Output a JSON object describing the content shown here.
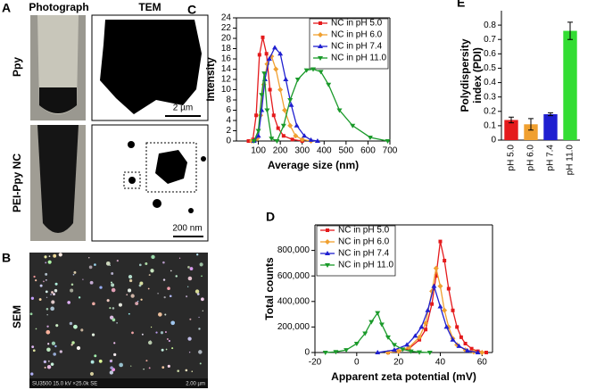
{
  "panels": {
    "A": {
      "label": "A",
      "columns": [
        "Photograph",
        "TEM"
      ],
      "rows": [
        "Ppy",
        "PEI-Ppy NC"
      ],
      "scale_bars": [
        "2 µm",
        "200 nm"
      ]
    },
    "B": {
      "label": "B",
      "title": "SEM",
      "footer": "SU3500 15.0 kV ×25.0k SE",
      "scale_bar": "2.00 µm"
    }
  },
  "chart_data": [
    {
      "type": "line",
      "label": "C",
      "xlabel": "Average size (nm)",
      "ylabel": "Intensity",
      "xlim": [
        0,
        700
      ],
      "xticks": [
        100,
        200,
        300,
        400,
        500,
        600,
        700
      ],
      "ylim": [
        0,
        24
      ],
      "yticks": [
        0,
        2,
        4,
        6,
        8,
        10,
        12,
        14,
        16,
        18,
        20,
        22,
        24
      ],
      "legend": "upper right",
      "series": [
        {
          "name": "NC in pH 5.0",
          "color": "#e41a1c",
          "marker": "square",
          "x": [
            55,
            75,
            90,
            105,
            120,
            137,
            153,
            170,
            190,
            215,
            255,
            300
          ],
          "values": [
            0,
            0.3,
            5,
            16.8,
            20.2,
            17,
            10,
            5,
            2.5,
            1,
            0.3,
            0
          ]
        },
        {
          "name": "NC in pH 6.0",
          "color": "#f0a030",
          "marker": "diamond",
          "x": [
            70,
            95,
            110,
            125,
            140,
            160,
            180,
            200,
            220,
            245,
            270,
            300,
            340
          ],
          "values": [
            0,
            0.5,
            5,
            11,
            15,
            16.5,
            14,
            10,
            6,
            3,
            1,
            0.3,
            0
          ]
        },
        {
          "name": "NC in pH 7.4",
          "color": "#1f1fd0",
          "marker": "triangle-up",
          "x": [
            80,
            100,
            115,
            130,
            150,
            175,
            200,
            225,
            250,
            275,
            310,
            340,
            370
          ],
          "values": [
            0,
            1,
            6,
            12,
            16,
            18.2,
            17,
            12,
            7,
            3,
            1,
            0.2,
            0
          ]
        },
        {
          "name": "NC in pH 11.0",
          "color": "#1a9a2a",
          "marker": "triangle-down",
          "x": [
            80,
            100,
            115,
            127,
            140,
            160,
            185,
            215,
            245,
            280,
            320,
            350,
            385,
            420,
            470,
            530,
            610,
            690
          ],
          "values": [
            0,
            2,
            9,
            13.2,
            6,
            0.5,
            0,
            3,
            8,
            12,
            13.8,
            14,
            13.5,
            11,
            6,
            3,
            0.7,
            0
          ]
        }
      ]
    },
    {
      "type": "line",
      "label": "D",
      "xlabel": "Apparent zeta potential (mV)",
      "ylabel": "Total counts",
      "xlim": [
        -20,
        65
      ],
      "xticks": [
        -20,
        0,
        20,
        40,
        60
      ],
      "ylim": [
        0,
        1000000
      ],
      "yticks": [
        0,
        {
          "value": 200000,
          "label": "200,000"
        },
        {
          "value": 400000,
          "label": "400,000"
        },
        {
          "value": 600000,
          "label": "600,000"
        },
        {
          "value": 800000,
          "label": "800,000"
        }
      ],
      "legend": "upper left",
      "series": [
        {
          "name": "NC in pH 5.0",
          "color": "#e41a1c",
          "marker": "square",
          "x": [
            15,
            20,
            25,
            30,
            33,
            36,
            38,
            40,
            42,
            44,
            46,
            48,
            50,
            52,
            55,
            58,
            62
          ],
          "values": [
            0,
            10000,
            30000,
            100000,
            180000,
            380000,
            600000,
            870000,
            720000,
            500000,
            330000,
            200000,
            120000,
            70000,
            30000,
            10000,
            0
          ]
        },
        {
          "name": "NC in pH 6.0",
          "color": "#f0a030",
          "marker": "diamond",
          "x": [
            15,
            20,
            25,
            30,
            33,
            36,
            38,
            40,
            42,
            44,
            46,
            48,
            52,
            56,
            60
          ],
          "values": [
            0,
            10000,
            40000,
            120000,
            230000,
            480000,
            660000,
            520000,
            330000,
            200000,
            110000,
            60000,
            20000,
            5000,
            0
          ]
        },
        {
          "name": "NC in pH 7.4",
          "color": "#1f1fd0",
          "marker": "triangle-up",
          "x": [
            10,
            18,
            24,
            28,
            31,
            34,
            37,
            40,
            43,
            46,
            49,
            53,
            58
          ],
          "values": [
            0,
            20000,
            60000,
            130000,
            200000,
            330000,
            520000,
            360000,
            200000,
            100000,
            50000,
            15000,
            0
          ]
        },
        {
          "name": "NC in pH 11.0",
          "color": "#1a9a2a",
          "marker": "triangle-down",
          "x": [
            -15,
            -10,
            -5,
            0,
            4,
            7,
            10,
            12,
            15,
            18,
            22,
            26,
            30,
            35
          ],
          "values": [
            0,
            5000,
            20000,
            70000,
            150000,
            240000,
            310000,
            220000,
            120000,
            60000,
            25000,
            10000,
            3000,
            0
          ]
        }
      ]
    },
    {
      "type": "bar",
      "label": "E",
      "ylabel_lines": [
        "Polydispersity",
        "index (PDI)"
      ],
      "categories": [
        "pH 5.0",
        "pH 6.0",
        "pH 7.4",
        "pH 11.0"
      ],
      "values": [
        0.14,
        0.11,
        0.18,
        0.76
      ],
      "errors": [
        0.02,
        0.04,
        0.01,
        0.06
      ],
      "colors": [
        "#e41a1c",
        "#f0a030",
        "#1f1fd0",
        "#33dd33"
      ],
      "ylim": [
        0,
        0.9
      ],
      "yticks": [
        0,
        0.1,
        0.2,
        0.3,
        0.4,
        0.5,
        0.6,
        0.7,
        0.8
      ]
    }
  ]
}
